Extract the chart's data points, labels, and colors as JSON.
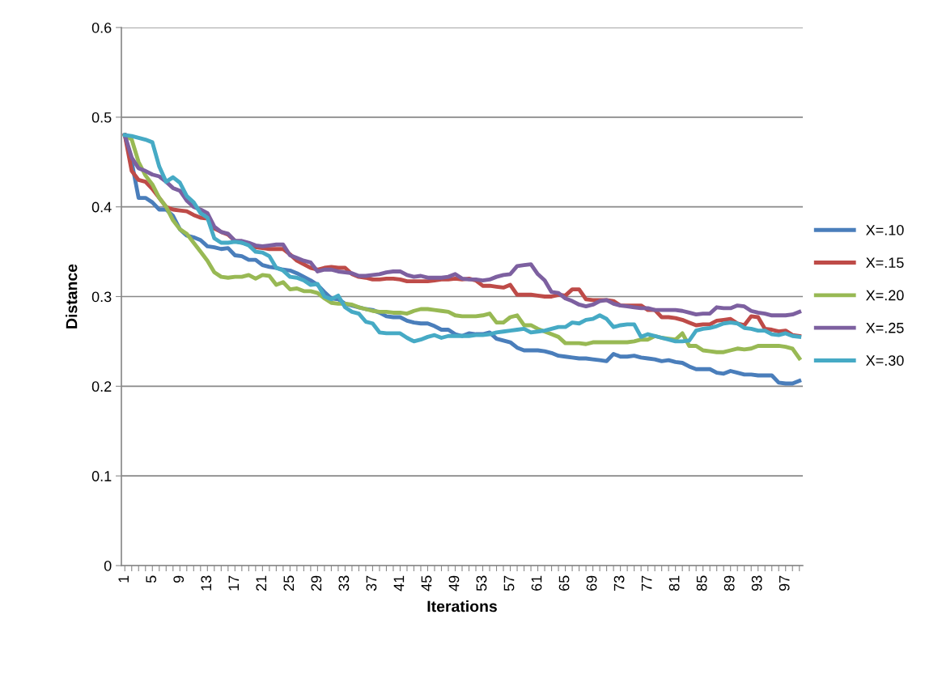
{
  "chart_data": {
    "type": "line",
    "xlabel": "Iterations",
    "ylabel": "Distance",
    "categories": [
      "1",
      null,
      null,
      null,
      "5",
      null,
      null,
      null,
      "9",
      null,
      null,
      null,
      "13",
      null,
      null,
      null,
      "17",
      null,
      null,
      null,
      "21",
      null,
      null,
      null,
      "25",
      null,
      null,
      null,
      "29",
      null,
      null,
      null,
      "33",
      null,
      null,
      null,
      "37",
      null,
      null,
      null,
      "41",
      null,
      null,
      null,
      "45",
      null,
      null,
      null,
      "49",
      null,
      null,
      null,
      "53",
      null,
      null,
      null,
      "57",
      null,
      null,
      null,
      "61",
      null,
      null,
      null,
      "65",
      null,
      null,
      null,
      "69",
      null,
      null,
      null,
      "73",
      null,
      null,
      null,
      "77",
      null,
      null,
      null,
      "81",
      null,
      null,
      null,
      "85",
      null,
      null,
      null,
      "89",
      null,
      null,
      null,
      "93",
      null,
      null,
      null,
      "97",
      null,
      null
    ],
    "ylim": [
      0,
      0.6
    ],
    "yticks": [
      0,
      0.1,
      0.2,
      0.3,
      0.4,
      0.5,
      0.6
    ],
    "grid": "y",
    "legend": "right",
    "marker": "none",
    "line_style": "solid",
    "series": [
      {
        "name": "X=.10",
        "color": "#4a7ebb",
        "values": [
          0.48,
          0.45,
          0.41,
          0.41,
          0.405,
          0.397,
          0.397,
          0.39,
          0.375,
          0.368,
          0.366,
          0.363,
          0.356,
          0.355,
          0.353,
          0.354,
          0.346,
          0.345,
          0.341,
          0.341,
          0.335,
          0.333,
          0.332,
          0.33,
          0.329,
          0.326,
          0.322,
          0.318,
          0.313,
          0.305,
          0.298,
          0.297,
          0.292,
          0.29,
          0.288,
          0.286,
          0.285,
          0.282,
          0.278,
          0.277,
          0.277,
          0.273,
          0.271,
          0.27,
          0.27,
          0.267,
          0.263,
          0.263,
          0.258,
          0.256,
          0.259,
          0.258,
          0.258,
          0.26,
          0.253,
          0.251,
          0.249,
          0.243,
          0.24,
          0.24,
          0.24,
          0.239,
          0.237,
          0.234,
          0.233,
          0.232,
          0.231,
          0.231,
          0.23,
          0.229,
          0.228,
          0.236,
          0.233,
          0.233,
          0.234,
          0.232,
          0.231,
          0.23,
          0.228,
          0.229,
          0.227,
          0.226,
          0.222,
          0.219,
          0.219,
          0.219,
          0.215,
          0.214,
          0.217,
          0.215,
          0.213,
          0.213,
          0.212,
          0.212,
          0.212,
          0.204,
          0.203,
          0.203,
          0.206
        ]
      },
      {
        "name": "X=.15",
        "color": "#be4b48",
        "values": [
          0.48,
          0.44,
          0.43,
          0.428,
          0.42,
          0.41,
          0.4,
          0.397,
          0.396,
          0.395,
          0.391,
          0.388,
          0.387,
          0.376,
          0.372,
          0.369,
          0.362,
          0.36,
          0.358,
          0.355,
          0.354,
          0.353,
          0.353,
          0.353,
          0.347,
          0.34,
          0.336,
          0.332,
          0.33,
          0.332,
          0.333,
          0.332,
          0.332,
          0.325,
          0.322,
          0.321,
          0.319,
          0.319,
          0.32,
          0.32,
          0.319,
          0.317,
          0.317,
          0.317,
          0.317,
          0.318,
          0.319,
          0.319,
          0.32,
          0.319,
          0.32,
          0.318,
          0.312,
          0.312,
          0.311,
          0.31,
          0.313,
          0.302,
          0.302,
          0.302,
          0.301,
          0.3,
          0.3,
          0.302,
          0.301,
          0.308,
          0.308,
          0.297,
          0.296,
          0.296,
          0.296,
          0.295,
          0.29,
          0.29,
          0.29,
          0.29,
          0.285,
          0.285,
          0.277,
          0.277,
          0.276,
          0.274,
          0.271,
          0.268,
          0.269,
          0.269,
          0.273,
          0.274,
          0.275,
          0.27,
          0.268,
          0.278,
          0.277,
          0.264,
          0.263,
          0.261,
          0.262,
          0.257,
          0.256
        ]
      },
      {
        "name": "X=.20",
        "color": "#98b954",
        "values": [
          0.48,
          0.475,
          0.45,
          0.435,
          0.425,
          0.41,
          0.4,
          0.385,
          0.375,
          0.37,
          0.36,
          0.35,
          0.34,
          0.327,
          0.322,
          0.321,
          0.322,
          0.322,
          0.324,
          0.32,
          0.324,
          0.323,
          0.313,
          0.316,
          0.308,
          0.309,
          0.306,
          0.306,
          0.304,
          0.298,
          0.293,
          0.292,
          0.292,
          0.291,
          0.288,
          0.286,
          0.284,
          0.283,
          0.283,
          0.282,
          0.282,
          0.281,
          0.284,
          0.286,
          0.286,
          0.285,
          0.284,
          0.283,
          0.279,
          0.278,
          0.278,
          0.278,
          0.279,
          0.281,
          0.271,
          0.271,
          0.277,
          0.279,
          0.268,
          0.268,
          0.264,
          0.261,
          0.258,
          0.255,
          0.248,
          0.248,
          0.248,
          0.247,
          0.249,
          0.249,
          0.249,
          0.249,
          0.249,
          0.249,
          0.25,
          0.252,
          0.252,
          0.256,
          0.254,
          0.253,
          0.252,
          0.259,
          0.245,
          0.245,
          0.24,
          0.239,
          0.238,
          0.238,
          0.24,
          0.242,
          0.241,
          0.242,
          0.245,
          0.245,
          0.245,
          0.245,
          0.244,
          0.242,
          0.231
        ]
      },
      {
        "name": "X=.25",
        "color": "#7d60a0",
        "values": [
          0.48,
          0.455,
          0.443,
          0.44,
          0.436,
          0.434,
          0.428,
          0.421,
          0.418,
          0.407,
          0.4,
          0.397,
          0.393,
          0.378,
          0.372,
          0.37,
          0.362,
          0.362,
          0.36,
          0.357,
          0.356,
          0.357,
          0.358,
          0.358,
          0.346,
          0.343,
          0.34,
          0.338,
          0.328,
          0.33,
          0.33,
          0.328,
          0.327,
          0.326,
          0.323,
          0.323,
          0.324,
          0.325,
          0.327,
          0.328,
          0.328,
          0.324,
          0.322,
          0.323,
          0.321,
          0.321,
          0.321,
          0.322,
          0.325,
          0.32,
          0.319,
          0.319,
          0.318,
          0.319,
          0.322,
          0.324,
          0.325,
          0.334,
          0.335,
          0.336,
          0.325,
          0.318,
          0.305,
          0.304,
          0.298,
          0.295,
          0.291,
          0.289,
          0.291,
          0.295,
          0.296,
          0.292,
          0.29,
          0.289,
          0.288,
          0.287,
          0.287,
          0.285,
          0.285,
          0.285,
          0.285,
          0.284,
          0.282,
          0.28,
          0.281,
          0.281,
          0.288,
          0.287,
          0.287,
          0.29,
          0.289,
          0.284,
          0.282,
          0.281,
          0.279,
          0.279,
          0.279,
          0.28,
          0.283
        ]
      },
      {
        "name": "X=.30",
        "color": "#46aac5",
        "values": [
          0.48,
          0.479,
          0.477,
          0.475,
          0.472,
          0.445,
          0.428,
          0.433,
          0.427,
          0.412,
          0.405,
          0.393,
          0.388,
          0.365,
          0.36,
          0.36,
          0.361,
          0.36,
          0.357,
          0.35,
          0.349,
          0.345,
          0.332,
          0.329,
          0.322,
          0.321,
          0.318,
          0.313,
          0.314,
          0.3,
          0.297,
          0.301,
          0.288,
          0.283,
          0.281,
          0.272,
          0.27,
          0.26,
          0.259,
          0.259,
          0.259,
          0.254,
          0.25,
          0.252,
          0.255,
          0.257,
          0.254,
          0.256,
          0.256,
          0.256,
          0.256,
          0.257,
          0.257,
          0.258,
          0.26,
          0.261,
          0.262,
          0.263,
          0.264,
          0.26,
          0.261,
          0.262,
          0.264,
          0.266,
          0.266,
          0.271,
          0.27,
          0.274,
          0.275,
          0.279,
          0.275,
          0.266,
          0.268,
          0.269,
          0.269,
          0.255,
          0.258,
          0.256,
          0.254,
          0.252,
          0.25,
          0.25,
          0.251,
          0.262,
          0.264,
          0.265,
          0.267,
          0.27,
          0.271,
          0.27,
          0.265,
          0.264,
          0.262,
          0.262,
          0.258,
          0.257,
          0.259,
          0.256,
          0.255
        ]
      }
    ]
  }
}
